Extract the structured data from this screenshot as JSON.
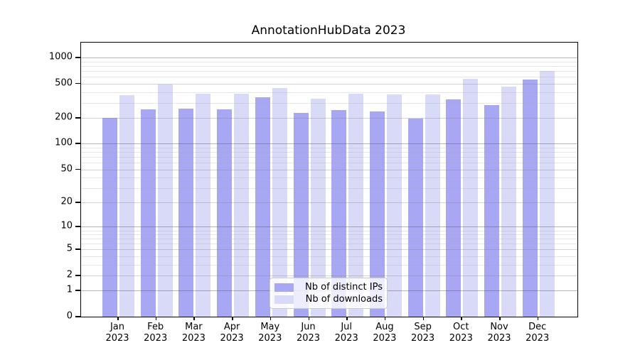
{
  "title": "AnnotationHubData 2023",
  "chart_data": {
    "type": "bar",
    "title": "AnnotationHubData 2023",
    "categories": [
      "Jan 2023",
      "Feb 2023",
      "Mar 2023",
      "Apr 2023",
      "May 2023",
      "Jun 2023",
      "Jul 2023",
      "Aug 2023",
      "Sep 2023",
      "Oct 2023",
      "Nov 2023",
      "Dec 2023"
    ],
    "series": [
      {
        "name": "Nb of distinct IPs",
        "color": "#a7a7f3",
        "values": [
          200,
          250,
          258,
          250,
          350,
          228,
          245,
          236,
          197,
          330,
          280,
          555
        ]
      },
      {
        "name": "Nb of downloads",
        "color": "#d9d9f8",
        "values": [
          370,
          490,
          385,
          383,
          445,
          335,
          380,
          374,
          376,
          570,
          460,
          700
        ]
      }
    ],
    "yscale": "log10(1+x)",
    "yticks": [
      1000,
      500,
      200,
      100,
      50,
      20,
      10,
      5,
      2,
      1,
      0
    ],
    "ylim": [
      0,
      1500
    ],
    "grid": true,
    "legend_position": "bottom-center"
  }
}
